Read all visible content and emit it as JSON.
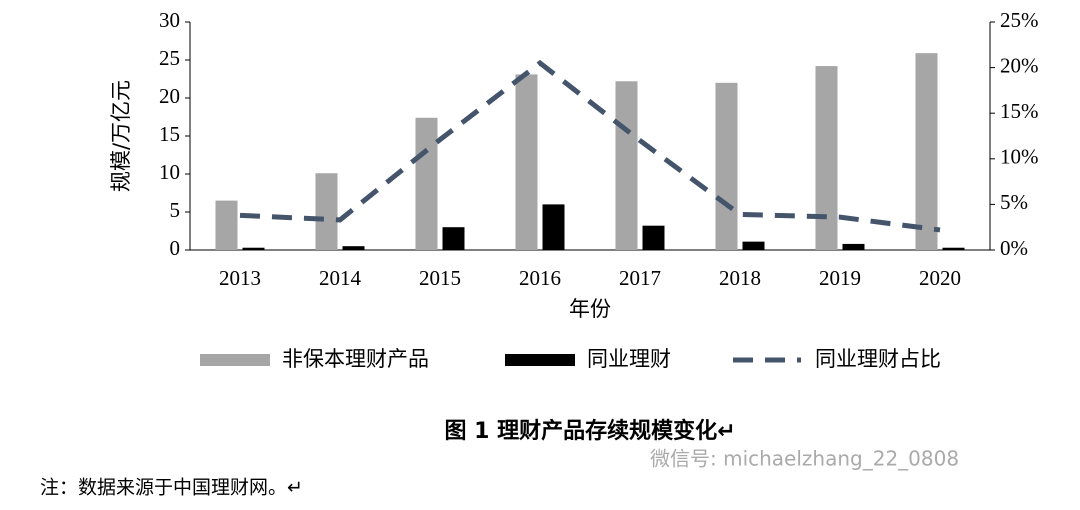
{
  "chart_data": {
    "type": "bar",
    "title": "图 1  理财产品存续规模变化↵",
    "x_label": "年份",
    "y_label": "规模/万亿元",
    "note": "注：数据来源于中国理财网。↵",
    "watermark": "微信号: michaelzhang_22_0808",
    "categories": [
      "2013",
      "2014",
      "2015",
      "2016",
      "2017",
      "2018",
      "2019",
      "2020"
    ],
    "series": [
      {
        "name": "非保本理财产品",
        "type": "bar",
        "color": "#a6a6a6",
        "values": [
          6.5,
          10.1,
          17.4,
          23.1,
          22.2,
          22.0,
          24.2,
          25.9
        ]
      },
      {
        "name": "同业理财",
        "type": "bar",
        "color": "#000000",
        "values": [
          0.3,
          0.5,
          3.0,
          6.0,
          3.2,
          1.1,
          0.8,
          0.3
        ]
      },
      {
        "name": "同业理财占比",
        "type": "line",
        "line_style": "dashed",
        "axis": "y2",
        "color": "#44546a",
        "values": [
          3.8,
          3.3,
          12.1,
          20.5,
          12.0,
          3.9,
          3.6,
          2.2
        ]
      }
    ],
    "ylim": [
      0,
      30
    ],
    "yticks": [
      0,
      5,
      10,
      15,
      20,
      25,
      30
    ],
    "y2lim": [
      0,
      25
    ],
    "y2ticks": [
      {
        "value": 0,
        "label": "0%"
      },
      {
        "value": 5,
        "label": "5%"
      },
      {
        "value": 10,
        "label": "10%"
      },
      {
        "value": 15,
        "label": "15%"
      },
      {
        "value": 20,
        "label": "20%"
      },
      {
        "value": 25,
        "label": "25%"
      }
    ],
    "grid": false,
    "legend": "bottom"
  }
}
